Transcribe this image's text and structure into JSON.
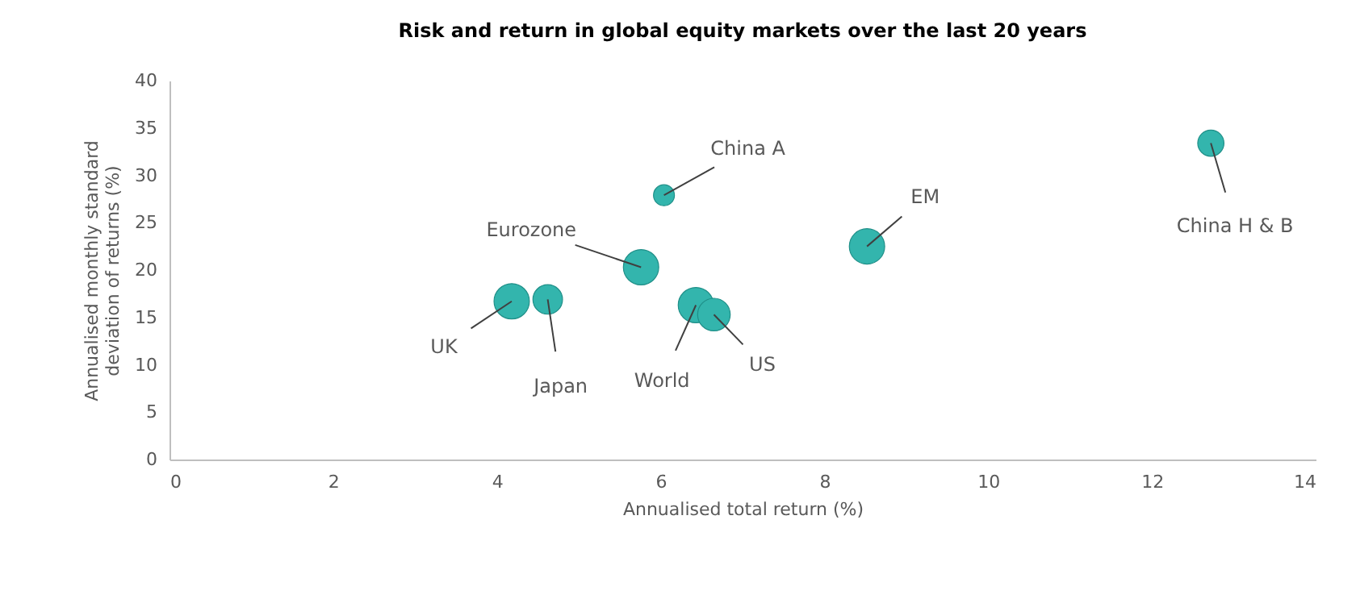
{
  "chart_data": {
    "type": "bubble",
    "title": "Risk and return in global equity markets over the last 20 years",
    "xlabel": "Annualised total return (%)",
    "ylabel": "Annualised monthly standard deviation of returns (%)",
    "x": [
      4.18,
      4.62,
      5.76,
      6.04,
      6.43,
      6.65,
      8.52,
      12.72
    ],
    "series": [
      {
        "color": "#33b5ad",
        "values": [
          16.7,
          16.9,
          20.3,
          27.9,
          16.3,
          15.3,
          22.5,
          33.4
        ],
        "sizes": [
          1,
          0.7,
          1,
          0.35,
          1,
          0.85,
          1,
          0.55
        ]
      }
    ],
    "annotations": [
      {
        "text": "UK",
        "x": 4.18,
        "y": 16.7
      },
      {
        "text": "Japan",
        "x": 4.62,
        "y": 16.9
      },
      {
        "text": "Eurozone",
        "x": 5.76,
        "y": 20.3
      },
      {
        "text": "China A",
        "x": 6.04,
        "y": 27.9
      },
      {
        "text": "World",
        "x": 6.43,
        "y": 16.3
      },
      {
        "text": "US",
        "x": 6.65,
        "y": 15.3
      },
      {
        "text": "EM",
        "x": 8.52,
        "y": 22.5
      },
      {
        "text": "China H & B",
        "x": 12.72,
        "y": 33.4
      }
    ],
    "xlim": [
      0,
      14
    ],
    "xticks": [
      0,
      2,
      4,
      6,
      8,
      10,
      12,
      14
    ],
    "ylim": [
      0,
      40
    ],
    "yticks": [
      0,
      5,
      10,
      15,
      20,
      25,
      30,
      35,
      40
    ],
    "grid": false
  }
}
